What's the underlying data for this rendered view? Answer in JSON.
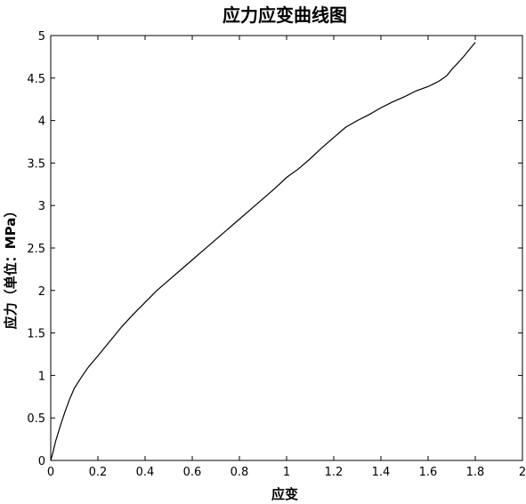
{
  "chart_data": {
    "type": "line",
    "title": "应力应变曲线图",
    "xlabel": "应变",
    "ylabel": "应力（单位：MPa）",
    "xlim": [
      0,
      2
    ],
    "ylim": [
      0,
      5
    ],
    "xticks": [
      "0",
      "0.2",
      "0.4",
      "0.6",
      "0.8",
      "1",
      "1.2",
      "1.4",
      "1.6",
      "1.8",
      "2"
    ],
    "yticks": [
      "0",
      "0.5",
      "1",
      "1.5",
      "2",
      "2.5",
      "3",
      "3.5",
      "4",
      "4.5",
      "5"
    ],
    "grid": false,
    "legend": "none",
    "line_color": "#000000",
    "series": [
      {
        "x": [
          0,
          0.01,
          0.02,
          0.04,
          0.06,
          0.08,
          0.1,
          0.13,
          0.16,
          0.2,
          0.25,
          0.3,
          0.35,
          0.4,
          0.45,
          0.5,
          0.55,
          0.6,
          0.65,
          0.7,
          0.75,
          0.8,
          0.85,
          0.9,
          0.95,
          1.0,
          1.05,
          1.1,
          1.15,
          1.2,
          1.25,
          1.3,
          1.35,
          1.4,
          1.45,
          1.5,
          1.55,
          1.6,
          1.63,
          1.65,
          1.68,
          1.7,
          1.75,
          1.8
        ],
        "y": [
          0,
          0.1,
          0.22,
          0.4,
          0.57,
          0.72,
          0.85,
          0.98,
          1.1,
          1.23,
          1.4,
          1.57,
          1.72,
          1.86,
          2.0,
          2.12,
          2.24,
          2.36,
          2.48,
          2.6,
          2.72,
          2.84,
          2.96,
          3.08,
          3.2,
          3.33,
          3.43,
          3.55,
          3.68,
          3.8,
          3.92,
          4.0,
          4.07,
          4.15,
          4.22,
          4.28,
          4.35,
          4.4,
          4.44,
          4.47,
          4.53,
          4.6,
          4.75,
          4.92
        ]
      }
    ]
  }
}
